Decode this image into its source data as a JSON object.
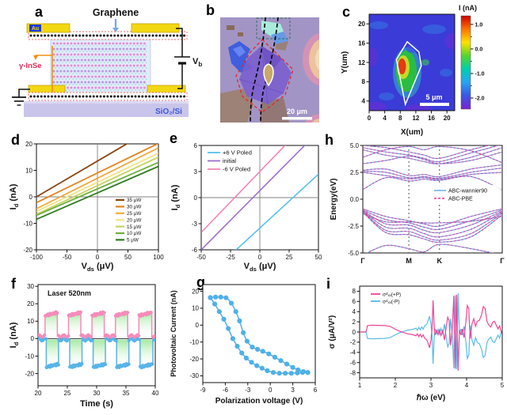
{
  "panels": {
    "a": "a",
    "b": "b",
    "c": "c",
    "d": "d",
    "e": "e",
    "f": "f",
    "g": "g",
    "h": "h",
    "i": "i"
  },
  "panel_a": {
    "graphene_label": "Graphene",
    "au_label": "Au",
    "inse_label": "γ-InSe",
    "bias_label": "V",
    "bias_sub": "b",
    "substrate_label": "SiO₂/Si",
    "colors": {
      "gold": "#f2d713",
      "gold_edge": "#c8a50a",
      "substrate": "#c9c5ea",
      "crystal_bg": "#e2ebfa",
      "dot_pink": "#df8fd8",
      "dot_violet": "#b79ae2",
      "dot_cyan": "#8fd8d2",
      "graphene_dot": "#111111",
      "strip_edge": "#e86a6a",
      "wire": "#111111",
      "orange": "#f29012",
      "label_red": "#e02858",
      "label_blue": "#3a55e0",
      "arrow_blue": "#7aa4ea",
      "au_chip": "#1a3ae0"
    }
  },
  "panel_b": {
    "scale_bar": "20 μm"
  },
  "chart_data": [
    {
      "id": "c",
      "type": "heatmap",
      "xlabel": "X(um)",
      "ylabel": "Y(um)",
      "xlim": [
        0,
        22
      ],
      "ylim": [
        2,
        22
      ],
      "xticks": [
        0,
        4,
        8,
        12,
        16,
        20
      ],
      "yticks": [
        4,
        8,
        12,
        16,
        20
      ],
      "colorbar": {
        "label": "I (nA)",
        "lim": [
          -2.45,
          1.35
        ],
        "ticks": [
          1.0,
          0.0,
          -1.0,
          -2.0
        ],
        "tick_labels": [
          "1.0",
          "0.0",
          "-1.0",
          "-2.0"
        ],
        "stops": [
          "#cc0000",
          "#ff7300",
          "#ffe100",
          "#55d42c",
          "#00cfae",
          "#29a3f2",
          "#3c55e6",
          "#7a22cc"
        ]
      },
      "scale_bar": "5 μm",
      "peak_value_nA": 1.0,
      "background_value_nA": -2.0
    },
    {
      "id": "d",
      "type": "line",
      "xlabel_parts": [
        [
          "V",
          0
        ],
        [
          "ds",
          1
        ],
        [
          " (μV)",
          0
        ]
      ],
      "ylabel_parts": [
        [
          "I",
          0
        ],
        [
          "d",
          1
        ],
        [
          " (nA)",
          0
        ]
      ],
      "xlim": [
        -100,
        100
      ],
      "ylim": [
        -20,
        20
      ],
      "xticks": [
        -100,
        -50,
        0,
        50,
        100
      ],
      "yticks": [
        -20,
        -10,
        0,
        10,
        20
      ],
      "series": [
        {
          "name": "35 μW",
          "color": "#8a4513",
          "slope": 0.135,
          "intercept": 13.5
        },
        {
          "name": "30 μW",
          "color": "#e6831e",
          "slope": 0.112,
          "intercept": 9.0
        },
        {
          "name": "25 μW",
          "color": "#f2a93b",
          "slope": 0.115,
          "intercept": 7.0
        },
        {
          "name": "20 μW",
          "color": "#f2e384",
          "slope": 0.11,
          "intercept": 5.5
        },
        {
          "name": "15 μW",
          "color": "#c6d35f",
          "slope": 0.108,
          "intercept": 4.2
        },
        {
          "name": "10 μW",
          "color": "#6fae3e",
          "slope": 0.1,
          "intercept": 3.0
        },
        {
          "name": "5 μW",
          "color": "#2f7d1f",
          "slope": 0.1,
          "intercept": 1.5
        }
      ]
    },
    {
      "id": "e",
      "type": "line",
      "xlabel_parts": [
        [
          "V",
          0
        ],
        [
          "ds",
          1
        ],
        [
          " (μV)",
          0
        ]
      ],
      "ylabel_parts": [
        [
          "I",
          0
        ],
        [
          "d",
          1
        ],
        [
          " (nA)",
          0
        ]
      ],
      "xlim": [
        -50,
        50
      ],
      "ylim": [
        -6,
        6
      ],
      "xticks": [
        -50,
        -25,
        0,
        25,
        50
      ],
      "yticks": [
        -6,
        -3,
        0,
        3,
        6
      ],
      "series": [
        {
          "name": "+6 V Poled",
          "color": "#56c2ee",
          "slope": 0.124,
          "intercept": -3.5
        },
        {
          "name": "initial",
          "color": "#9b6fd0",
          "slope": 0.136,
          "intercept": 0.8
        },
        {
          "name": "-6 V Poled",
          "color": "#f285b5",
          "slope": 0.14,
          "intercept": 3.0
        }
      ]
    },
    {
      "id": "f",
      "type": "line",
      "annotation": "Laser 520nm",
      "xlabel": "Time (s)",
      "ylabel_parts": [
        [
          "I",
          0
        ],
        [
          "d",
          1
        ],
        [
          " (nA)",
          0
        ]
      ],
      "xlim": [
        20,
        40
      ],
      "ylim": [
        -27,
        31
      ],
      "xticks": [
        20,
        25,
        30,
        35,
        40
      ],
      "yticks": [
        -20,
        -10,
        0,
        10,
        20,
        30
      ],
      "fill_color": "#9fe79b",
      "series": [
        {
          "name": "positive photocurrent",
          "color": "#f58cba",
          "baseline": 1.5,
          "on_start": 13.2,
          "on_end": 15.0,
          "pulses": [
            [
              21.2,
              23.3
            ],
            [
              25.2,
              27.3
            ],
            [
              29.2,
              31.3
            ],
            [
              33.2,
              35.3
            ],
            [
              37.2,
              39.4
            ]
          ]
        },
        {
          "name": "negative photocurrent",
          "color": "#58b4e8",
          "baseline": -0.6,
          "on_start": -16.3,
          "on_end": -14.6,
          "pulses": [
            [
              21.4,
              23.5
            ],
            [
              25.4,
              27.5
            ],
            [
              29.4,
              31.5
            ],
            [
              33.4,
              35.5
            ],
            [
              37.4,
              39.6
            ]
          ]
        }
      ]
    },
    {
      "id": "g",
      "type": "scatter-line",
      "xlabel": "Polarization voltage (V)",
      "ylabel": "Photovoltaic Current (nA)",
      "xlim": [
        -9,
        6
      ],
      "ylim": [
        -34,
        24
      ],
      "xticks": [
        -9,
        -6,
        -3,
        0,
        3,
        6
      ],
      "yticks": [
        -30,
        -20,
        -10,
        0,
        10,
        20
      ],
      "color": "#4fb0e8",
      "branches": [
        {
          "name": "backward sweep",
          "x": [
            -8,
            -7.4,
            -6.8,
            -6.2,
            -5.6,
            -5,
            -4.4,
            -3.8,
            -3.2,
            -2.5,
            -1.8,
            -1.1,
            -0.4,
            0.4,
            1.2,
            2,
            2.8,
            3.6,
            4.3,
            5
          ],
          "y": [
            16.3,
            12.5,
            8,
            3.5,
            -2,
            -8,
            -12.5,
            -16.5,
            -19.5,
            -22,
            -24,
            -25.5,
            -27,
            -28,
            -28.5,
            -28.5,
            -28.5,
            -28.3,
            -28,
            -28
          ]
        },
        {
          "name": "forward sweep",
          "x": [
            -8,
            -7.3,
            -6.6,
            -5.9,
            -5.2,
            -4.6,
            -4.1,
            -3.6,
            -3.1,
            -2.4,
            -1.7,
            -1,
            -0.2,
            0.6,
            1.4,
            2.2,
            3,
            3.7,
            4.4,
            5
          ],
          "y": [
            16.3,
            16.6,
            16.6,
            16.2,
            13,
            8,
            2.5,
            -4.5,
            -9.5,
            -13,
            -14.3,
            -15.5,
            -17,
            -19,
            -21,
            -23,
            -25,
            -26.5,
            -27.5,
            -28
          ]
        }
      ]
    },
    {
      "id": "h",
      "type": "band-structure",
      "ylabel": "Energy(eV)",
      "ylim": [
        -5,
        5
      ],
      "yticks": [
        -5,
        -2.5,
        0,
        2.5,
        5
      ],
      "ytick_labels": [
        "-5.0",
        "-2.5",
        "0.0",
        "2.5",
        "5.0"
      ],
      "kpoint_labels": [
        "Γ",
        "M",
        "K",
        "Γ"
      ],
      "kpoint_positions": [
        0,
        0.33,
        0.55,
        1
      ],
      "band_k_fractions": [
        0,
        0.165,
        0.33,
        0.44,
        0.55,
        0.775,
        1
      ],
      "legend": [
        {
          "name": "ABC-wannier90",
          "color": "#6db5ea",
          "style": "solid"
        },
        {
          "name": "ABC-PBE",
          "color": "#e8359b",
          "style": "dashed"
        }
      ],
      "valence_bands": [
        [
          -0.9,
          -1.6,
          -2.0,
          -2.3,
          -2.5,
          -1.6,
          -0.9
        ],
        [
          -1.0,
          -1.9,
          -2.2,
          -2.6,
          -2.8,
          -2.0,
          -1.0
        ],
        [
          -1.05,
          -2.3,
          -2.4,
          -2.9,
          -3.1,
          -2.4,
          -1.1
        ],
        [
          -1.1,
          -2.6,
          -2.7,
          -3.2,
          -3.5,
          -2.8,
          -1.2
        ],
        [
          -1.15,
          -2.9,
          -3.0,
          -3.5,
          -3.8,
          -3.2,
          -1.3
        ],
        [
          -1.2,
          -3.1,
          -3.3,
          -3.7,
          -4.0,
          -3.5,
          -1.45
        ],
        [
          -1.35,
          -2.1,
          -2.1,
          -2.2,
          -2.2,
          -2.05,
          -1.6
        ],
        [
          -5.2,
          -4.3,
          -4.6,
          -4.9,
          -4.2,
          -4.6,
          -5.2
        ]
      ],
      "conduction_bands": [
        [
          0.9,
          2.0,
          1.7,
          1.85,
          1.75,
          2.1,
          0.85
        ],
        [
          2.5,
          2.2,
          1.9,
          2.0,
          1.85,
          2.3,
          2.5
        ],
        [
          2.6,
          2.5,
          2.0,
          2.1,
          1.95,
          2.5,
          2.9
        ],
        [
          2.7,
          2.8,
          2.2,
          2.3,
          2.1,
          2.8,
          3.2
        ],
        [
          3.3,
          3.6,
          4.0,
          3.7,
          3.3,
          3.6,
          4.4
        ],
        [
          4.6,
          4.1,
          3.8,
          3.5,
          3.3,
          3.9,
          4.8
        ],
        [
          4.8,
          4.4,
          4.1,
          3.8,
          3.5,
          4.3,
          5.1
        ],
        [
          5.0,
          4.8,
          4.4,
          4.1,
          3.8,
          4.6,
          5.3
        ],
        [
          3.9,
          4.6,
          4.9,
          4.6,
          4.9,
          4.5,
          3.4
        ]
      ]
    },
    {
      "id": "i",
      "type": "line",
      "xlabel": "ℏω (eV)",
      "ylabel": "σ (μA/V²)",
      "xlim": [
        1,
        5
      ],
      "ylim": [
        -9,
        9
      ],
      "xticks": [
        1,
        2,
        3,
        4,
        5
      ],
      "yticks": [
        -8,
        -6,
        -4,
        -2,
        0,
        2,
        4,
        6,
        8
      ],
      "series": [
        {
          "name": "σᵈₓₓ(+P)",
          "color": "#f04395",
          "x": [
            1.0,
            1.18,
            1.22,
            1.35,
            1.5,
            1.7,
            1.85,
            2.0,
            2.1,
            2.2,
            2.35,
            2.5,
            2.58,
            2.62,
            2.66,
            2.7,
            2.74,
            2.78,
            2.82,
            2.88,
            2.92,
            2.96,
            3.0,
            3.03,
            3.06,
            3.09,
            3.12,
            3.16,
            3.2,
            3.24,
            3.28,
            3.33,
            3.38,
            3.43,
            3.47,
            3.51,
            3.55,
            3.6,
            3.64,
            3.68,
            3.72,
            3.76,
            3.8,
            3.84,
            3.88,
            3.93,
            3.98,
            4.02,
            4.06,
            4.1,
            4.15,
            4.2,
            4.25,
            4.3,
            4.36,
            4.42,
            4.47,
            4.52,
            4.57,
            4.62,
            4.68,
            4.73,
            4.78,
            4.83,
            4.88,
            4.93,
            5.0
          ],
          "y": [
            0,
            0.05,
            1.25,
            1.35,
            1.3,
            1.25,
            1.1,
            0.55,
            0.2,
            -0.05,
            -0.35,
            -0.55,
            -0.75,
            -0.35,
            -0.9,
            -0.45,
            -1.0,
            -0.55,
            -1.2,
            -1.5,
            -2.2,
            -3.1,
            -1.6,
            0.5,
            6.2,
            1.0,
            -0.6,
            0.3,
            -0.5,
            0.4,
            -0.7,
            0.3,
            -1.6,
            1.2,
            2.9,
            2.2,
            -2.6,
            0.6,
            7.1,
            -7.2,
            7.3,
            -7.6,
            0.4,
            -0.6,
            0.6,
            -1.1,
            2.0,
            5.2,
            4.6,
            -1.3,
            1.6,
            2.6,
            1.1,
            2.1,
            2.3,
            3.4,
            5.0,
            4.6,
            2.1,
            1.4,
            1.0,
            1.9,
            2.1,
            1.4,
            0.6,
            1.2,
            -0.7
          ]
        },
        {
          "name": "σᵈₓₓ(-P)",
          "color": "#56bce8",
          "mirror_of_series_0": true
        }
      ]
    }
  ]
}
